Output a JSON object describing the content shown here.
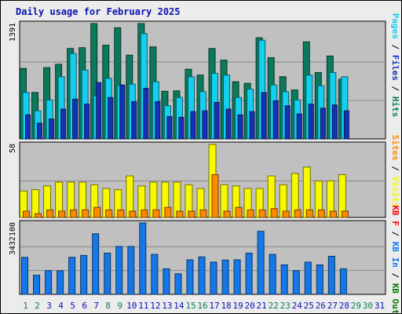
{
  "title": "Daily usage for February 2025",
  "colors": {
    "hits": "#0b7a5c",
    "files": "#14d0f0",
    "pages": "#1432b8",
    "visits": "#f8f800",
    "sites": "#ff8a00",
    "kbf": "#ff0000",
    "kbin": "#1478e8",
    "kbout": "#0b7a00",
    "weekend": "#0b7a5c",
    "weekday": "#0b13b3",
    "panel": "#c0c0c0"
  },
  "chart_data": [
    {
      "type": "bar",
      "name": "hits-files-pages",
      "categories": [
        "1",
        "2",
        "3",
        "4",
        "5",
        "6",
        "7",
        "8",
        "9",
        "10",
        "11",
        "12",
        "13",
        "14",
        "15",
        "16",
        "17",
        "18",
        "19",
        "20",
        "21",
        "22",
        "23",
        "24",
        "25",
        "26",
        "27",
        "28",
        "29",
        "30",
        "31"
      ],
      "ymax_label": "1391",
      "ylim": [
        0,
        1391
      ],
      "legend_labels": [
        "Pages",
        "Files",
        "Hits"
      ],
      "series": [
        {
          "name": "Hits",
          "values": [
            850,
            560,
            860,
            900,
            1090,
            1100,
            1391,
            1130,
            1340,
            1010,
            1391,
            1110,
            575,
            580,
            840,
            770,
            1090,
            950,
            690,
            670,
            1220,
            980,
            750,
            590,
            1170,
            800,
            1000,
            720,
            0,
            0,
            0
          ]
        },
        {
          "name": "Files",
          "values": [
            560,
            340,
            470,
            750,
            1030,
            830,
            520,
            730,
            650,
            660,
            1270,
            690,
            400,
            500,
            750,
            570,
            790,
            770,
            500,
            600,
            1190,
            650,
            570,
            470,
            770,
            640,
            800,
            750,
            0,
            0,
            0
          ]
        },
        {
          "name": "Pages",
          "values": [
            290,
            190,
            240,
            360,
            480,
            420,
            680,
            500,
            650,
            450,
            610,
            450,
            270,
            260,
            330,
            340,
            440,
            360,
            290,
            330,
            560,
            460,
            400,
            300,
            420,
            370,
            410,
            340,
            0,
            0,
            0
          ]
        }
      ]
    },
    {
      "type": "bar",
      "name": "visits-sites",
      "categories": [
        "1",
        "2",
        "3",
        "4",
        "5",
        "6",
        "7",
        "8",
        "9",
        "10",
        "11",
        "12",
        "13",
        "14",
        "15",
        "16",
        "17",
        "18",
        "19",
        "20",
        "21",
        "22",
        "23",
        "24",
        "25",
        "26",
        "27",
        "28",
        "29",
        "30",
        "31"
      ],
      "ymax_label": "58",
      "ylim": [
        0,
        58
      ],
      "legend_labels": [
        "Sites",
        "Visits"
      ],
      "series": [
        {
          "name": "Visits",
          "values": [
            21,
            22,
            25,
            28,
            28,
            28,
            26,
            23,
            22,
            33,
            25,
            28,
            28,
            28,
            26,
            23,
            58,
            26,
            25,
            23,
            23,
            33,
            26,
            35,
            40,
            29,
            29,
            34,
            0,
            0,
            0
          ]
        },
        {
          "name": "Sites",
          "values": [
            5,
            3,
            6,
            5,
            6,
            6,
            8,
            6,
            6,
            5,
            6,
            6,
            8,
            5,
            5,
            6,
            34,
            5,
            8,
            6,
            6,
            7,
            5,
            6,
            6,
            6,
            5,
            5,
            0,
            0,
            0
          ]
        }
      ]
    },
    {
      "type": "bar",
      "name": "kbytes",
      "categories": [
        "1",
        "2",
        "3",
        "4",
        "5",
        "6",
        "7",
        "8",
        "9",
        "10",
        "11",
        "12",
        "13",
        "14",
        "15",
        "16",
        "17",
        "18",
        "19",
        "20",
        "21",
        "22",
        "23",
        "24",
        "25",
        "26",
        "27",
        "28",
        "29",
        "30",
        "31"
      ],
      "ymax_label": "3432100",
      "ylim": [
        0,
        3432100
      ],
      "legend_labels": [
        "KB F",
        "KB In",
        "KB Out"
      ],
      "series": [
        {
          "name": "KB In",
          "values": [
            1780000,
            920000,
            1140000,
            1140000,
            1780000,
            1870000,
            2910000,
            1980000,
            2300000,
            2300000,
            3432100,
            1920000,
            1230000,
            990000,
            1660000,
            1800000,
            1550000,
            1650000,
            1660000,
            1980000,
            3030000,
            1920000,
            1420000,
            1140000,
            1550000,
            1420000,
            1830000,
            1230000,
            0,
            0,
            0
          ]
        }
      ]
    }
  ],
  "day_labels": [
    "1",
    "2",
    "3",
    "4",
    "5",
    "6",
    "7",
    "8",
    "9",
    "10",
    "11",
    "12",
    "13",
    "14",
    "15",
    "16",
    "17",
    "18",
    "19",
    "20",
    "21",
    "22",
    "23",
    "24",
    "25",
    "26",
    "27",
    "28",
    "29",
    "30",
    "31"
  ],
  "weekend_days": [
    "1",
    "2",
    "8",
    "9",
    "15",
    "16",
    "22",
    "23",
    "29",
    "30"
  ]
}
